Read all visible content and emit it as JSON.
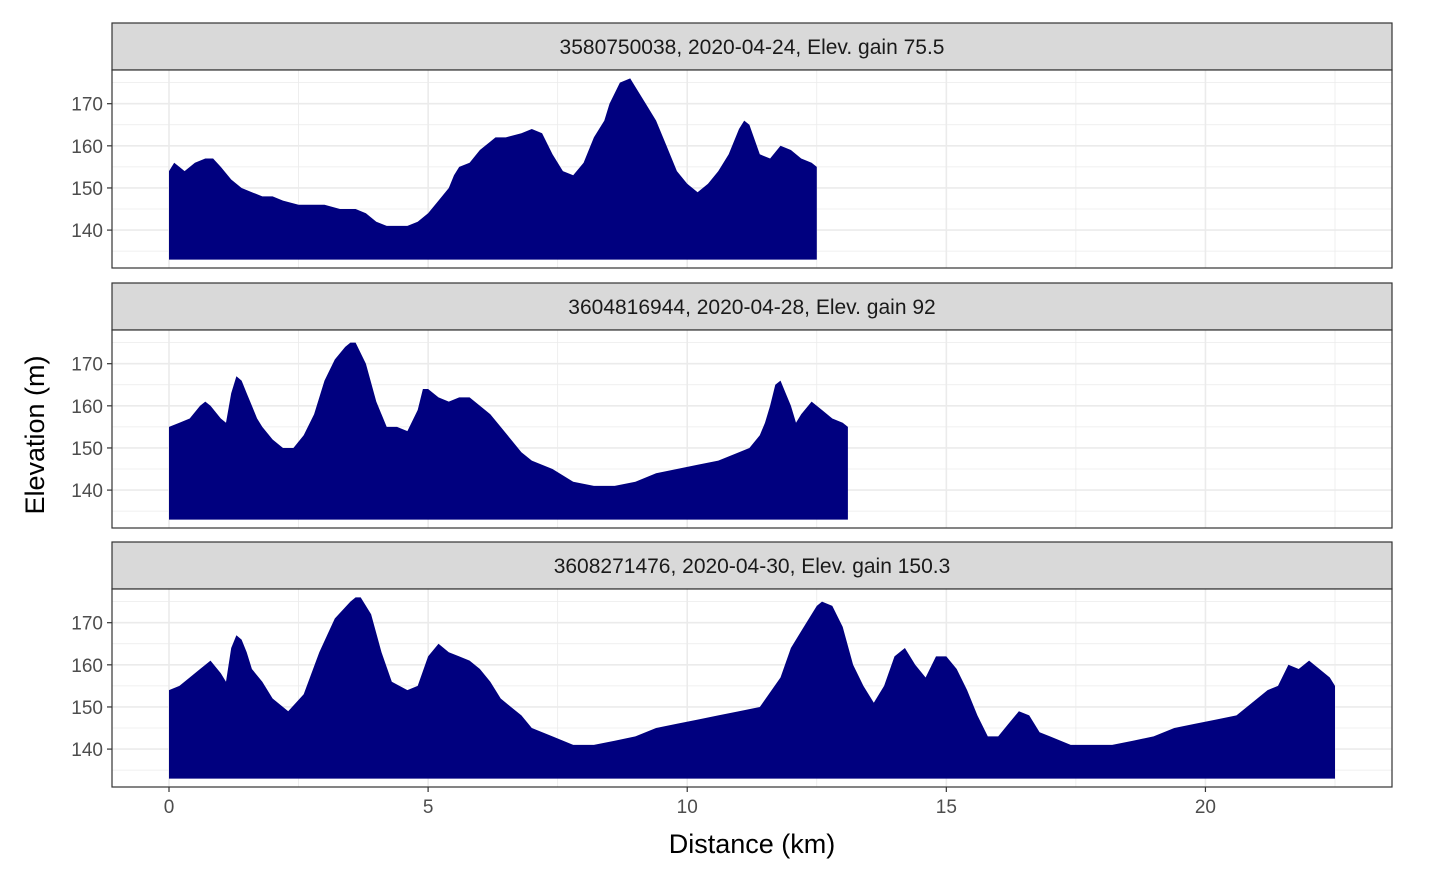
{
  "chart_data": {
    "type": "area",
    "layout": "facet-rows",
    "xlabel": "Distance (km)",
    "ylabel": "Elevation (m)",
    "xlim": [
      -1.1,
      23.6
    ],
    "ylim": [
      131,
      178
    ],
    "baseline": 133,
    "x_ticks": [
      0,
      5,
      10,
      15,
      20
    ],
    "x_tick_labels": [
      "0",
      "5",
      "10",
      "15",
      "20"
    ],
    "y_ticks": [
      140,
      150,
      160,
      170
    ],
    "y_tick_labels": [
      "140",
      "150",
      "160",
      "170"
    ],
    "grid": true,
    "colors": {
      "fill": "#00007f",
      "strip": "#d9d9d9",
      "grid": "#ebebeb",
      "border": "#333333"
    },
    "panels": [
      {
        "strip_label": "3580750038, 2020-04-24, Elev. gain 75.5",
        "x": [
          0,
          0.1,
          0.2,
          0.3,
          0.5,
          0.7,
          0.85,
          1.0,
          1.2,
          1.4,
          1.6,
          1.8,
          2.0,
          2.2,
          2.5,
          2.8,
          3.0,
          3.3,
          3.6,
          3.8,
          4.0,
          4.2,
          4.4,
          4.6,
          4.8,
          5.0,
          5.2,
          5.4,
          5.5,
          5.6,
          5.8,
          6.0,
          6.2,
          6.3,
          6.5,
          6.8,
          7.0,
          7.2,
          7.4,
          7.6,
          7.8,
          8.0,
          8.2,
          8.4,
          8.5,
          8.7,
          8.9,
          9.0,
          9.2,
          9.4,
          9.6,
          9.8,
          10.0,
          10.2,
          10.4,
          10.6,
          10.8,
          11.0,
          11.1,
          11.2,
          11.4,
          11.6,
          11.8,
          12.0,
          12.2,
          12.4,
          12.5
        ],
        "values": [
          154,
          156,
          155,
          154,
          156,
          157,
          157,
          155,
          152,
          150,
          149,
          148,
          148,
          147,
          146,
          146,
          146,
          145,
          145,
          144,
          142,
          141,
          141,
          141,
          142,
          144,
          147,
          150,
          153,
          155,
          156,
          159,
          161,
          162,
          162,
          163,
          164,
          163,
          158,
          154,
          153,
          156,
          162,
          166,
          170,
          175,
          176,
          174,
          170,
          166,
          160,
          154,
          151,
          149,
          151,
          154,
          158,
          164,
          166,
          165,
          158,
          157,
          160,
          159,
          157,
          156,
          155
        ]
      },
      {
        "strip_label": "3604816944, 2020-04-28, Elev. gain 92",
        "x": [
          0,
          0.2,
          0.4,
          0.6,
          0.7,
          0.8,
          1.0,
          1.1,
          1.2,
          1.3,
          1.4,
          1.5,
          1.6,
          1.7,
          1.8,
          2.0,
          2.2,
          2.4,
          2.6,
          2.8,
          3.0,
          3.2,
          3.4,
          3.5,
          3.6,
          3.8,
          4.0,
          4.2,
          4.4,
          4.6,
          4.8,
          4.9,
          5.0,
          5.2,
          5.4,
          5.6,
          5.8,
          6.0,
          6.2,
          6.4,
          6.6,
          6.8,
          7.0,
          7.4,
          7.8,
          8.2,
          8.6,
          9.0,
          9.4,
          9.8,
          10.2,
          10.6,
          11.0,
          11.2,
          11.4,
          11.5,
          11.6,
          11.7,
          11.8,
          11.9,
          12.0,
          12.1,
          12.2,
          12.4,
          12.6,
          12.8,
          13.0,
          13.1
        ],
        "values": [
          155,
          156,
          157,
          160,
          161,
          160,
          157,
          156,
          163,
          167,
          166,
          163,
          160,
          157,
          155,
          152,
          150,
          150,
          153,
          158,
          166,
          171,
          174,
          175,
          175,
          170,
          161,
          155,
          155,
          154,
          159,
          164,
          164,
          162,
          161,
          162,
          162,
          160,
          158,
          155,
          152,
          149,
          147,
          145,
          142,
          141,
          141,
          142,
          144,
          145,
          146,
          147,
          149,
          150,
          153,
          156,
          160,
          165,
          166,
          163,
          160,
          156,
          158,
          161,
          159,
          157,
          156,
          155
        ]
      },
      {
        "strip_label": "3608271476, 2020-04-30, Elev. gain 150.3",
        "x": [
          0,
          0.2,
          0.4,
          0.6,
          0.8,
          1.0,
          1.1,
          1.2,
          1.3,
          1.4,
          1.5,
          1.6,
          1.8,
          2.0,
          2.3,
          2.6,
          2.9,
          3.2,
          3.5,
          3.6,
          3.7,
          3.9,
          4.1,
          4.3,
          4.6,
          4.8,
          5.0,
          5.2,
          5.4,
          5.6,
          5.8,
          6.0,
          6.2,
          6.4,
          6.6,
          6.8,
          7.0,
          7.4,
          7.8,
          8.2,
          8.6,
          9.0,
          9.4,
          9.8,
          10.2,
          10.6,
          11.0,
          11.4,
          11.8,
          12.0,
          12.2,
          12.4,
          12.5,
          12.6,
          12.8,
          13.0,
          13.2,
          13.4,
          13.6,
          13.8,
          14.0,
          14.2,
          14.4,
          14.6,
          14.8,
          15.0,
          15.2,
          15.4,
          15.6,
          15.8,
          16.0,
          16.2,
          16.4,
          16.6,
          16.8,
          17.0,
          17.4,
          17.8,
          18.2,
          18.6,
          19.0,
          19.4,
          19.8,
          20.2,
          20.6,
          21.0,
          21.2,
          21.4,
          21.6,
          21.8,
          22.0,
          22.2,
          22.4,
          22.5
        ],
        "values": [
          154,
          155,
          157,
          159,
          161,
          158,
          156,
          164,
          167,
          166,
          163,
          159,
          156,
          152,
          149,
          153,
          163,
          171,
          175,
          176,
          176,
          172,
          163,
          156,
          154,
          155,
          162,
          165,
          163,
          162,
          161,
          159,
          156,
          152,
          150,
          148,
          145,
          143,
          141,
          141,
          142,
          143,
          145,
          146,
          147,
          148,
          149,
          150,
          157,
          164,
          168,
          172,
          174,
          175,
          174,
          169,
          160,
          155,
          151,
          155,
          162,
          164,
          160,
          157,
          162,
          162,
          159,
          154,
          148,
          143,
          143,
          146,
          149,
          148,
          144,
          143,
          141,
          141,
          141,
          142,
          143,
          145,
          146,
          147,
          148,
          152,
          154,
          155,
          160,
          159,
          161,
          159,
          157,
          155
        ]
      }
    ]
  }
}
